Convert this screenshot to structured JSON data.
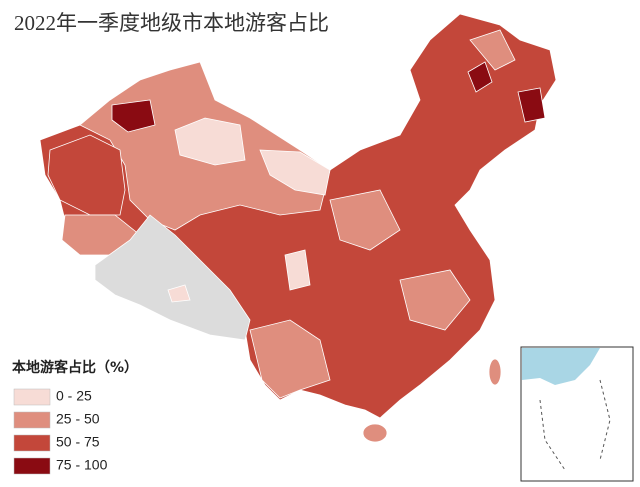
{
  "title": "2022年一季度地级市本地游客占比",
  "legend": {
    "title": "本地游客占比（%）",
    "items": [
      {
        "label": "0 - 25",
        "color": "#f7dcd6"
      },
      {
        "label": "25 - 50",
        "color": "#df8e7e"
      },
      {
        "label": "50 - 75",
        "color": "#c3473a"
      },
      {
        "label": "75 - 100",
        "color": "#8a0b12"
      }
    ]
  }
}
